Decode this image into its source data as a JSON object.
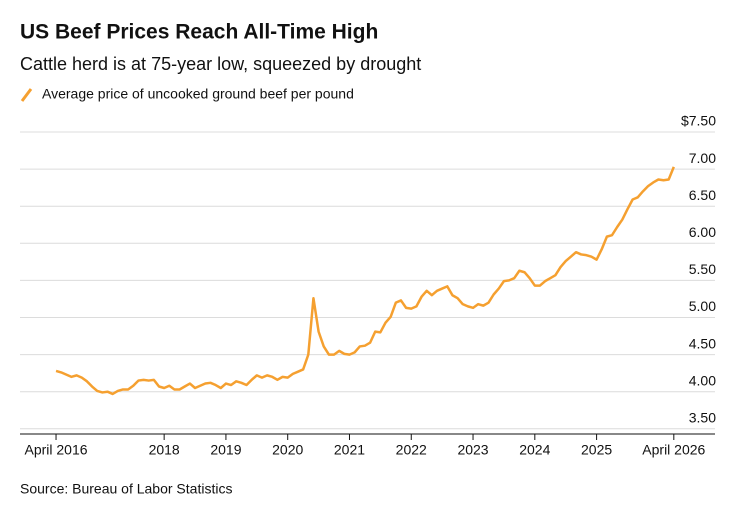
{
  "chart_data": {
    "type": "line",
    "title": "US Beef Prices Reach All-Time High",
    "subtitle": "Cattle herd is at 75-year low, squeezed by drought",
    "source": "Source: Bureau of Labor Statistics",
    "x": [
      "2016-04",
      "2016-05",
      "2016-06",
      "2016-07",
      "2016-08",
      "2016-09",
      "2016-10",
      "2016-11",
      "2016-12",
      "2017-01",
      "2017-02",
      "2017-03",
      "2017-04",
      "2017-05",
      "2017-06",
      "2017-07",
      "2017-08",
      "2017-09",
      "2017-10",
      "2017-11",
      "2017-12",
      "2018-01",
      "2018-02",
      "2018-03",
      "2018-04",
      "2018-05",
      "2018-06",
      "2018-07",
      "2018-08",
      "2018-09",
      "2018-10",
      "2018-11",
      "2018-12",
      "2019-01",
      "2019-02",
      "2019-03",
      "2019-04",
      "2019-05",
      "2019-06",
      "2019-07",
      "2019-08",
      "2019-09",
      "2019-10",
      "2019-11",
      "2019-12",
      "2020-01",
      "2020-02",
      "2020-03",
      "2020-04",
      "2020-05",
      "2020-06",
      "2020-07",
      "2020-08",
      "2020-09",
      "2020-10",
      "2020-11",
      "2020-12",
      "2021-01",
      "2021-02",
      "2021-03",
      "2021-04",
      "2021-05",
      "2021-06",
      "2021-07",
      "2021-08",
      "2021-09",
      "2021-10",
      "2021-11",
      "2021-12",
      "2022-01",
      "2022-02",
      "2022-03",
      "2022-04",
      "2022-05",
      "2022-06",
      "2022-07",
      "2022-08",
      "2022-09",
      "2022-10",
      "2022-11",
      "2022-12",
      "2023-01",
      "2023-02",
      "2023-03",
      "2023-04",
      "2023-05",
      "2023-06",
      "2023-07",
      "2023-08",
      "2023-09",
      "2023-10",
      "2023-11",
      "2023-12",
      "2024-01",
      "2024-02",
      "2024-03",
      "2024-04",
      "2024-05",
      "2024-06",
      "2024-07",
      "2024-08",
      "2024-09",
      "2024-10",
      "2024-11",
      "2024-12",
      "2025-01",
      "2025-02",
      "2025-03",
      "2025-04",
      "2025-05",
      "2025-06",
      "2025-07",
      "2025-08",
      "2025-09",
      "2025-10",
      "2025-11",
      "2025-12",
      "2026-01",
      "2026-02",
      "2026-03",
      "2026-04"
    ],
    "series": [
      {
        "name": "Average price of uncooked ground beef per pound",
        "color": "#f5a030",
        "values": [
          4.28,
          4.26,
          4.23,
          4.2,
          4.22,
          4.19,
          4.14,
          4.07,
          4.01,
          3.99,
          4.0,
          3.97,
          4.01,
          4.03,
          4.03,
          4.08,
          4.15,
          4.16,
          4.15,
          4.16,
          4.07,
          4.05,
          4.08,
          4.03,
          4.03,
          4.07,
          4.11,
          4.05,
          4.08,
          4.11,
          4.12,
          4.09,
          4.05,
          4.11,
          4.09,
          4.14,
          4.12,
          4.09,
          4.16,
          4.22,
          4.19,
          4.22,
          4.2,
          4.16,
          4.2,
          4.19,
          4.24,
          4.27,
          4.3,
          4.5,
          5.26,
          4.81,
          4.61,
          4.5,
          4.5,
          4.55,
          4.51,
          4.5,
          4.53,
          4.61,
          4.62,
          4.66,
          4.81,
          4.8,
          4.93,
          5.01,
          5.2,
          5.23,
          5.13,
          5.12,
          5.15,
          5.28,
          5.36,
          5.3,
          5.36,
          5.39,
          5.42,
          5.3,
          5.26,
          5.18,
          5.15,
          5.13,
          5.18,
          5.16,
          5.2,
          5.31,
          5.39,
          5.49,
          5.5,
          5.53,
          5.63,
          5.61,
          5.53,
          5.43,
          5.43,
          5.49,
          5.53,
          5.57,
          5.68,
          5.76,
          5.82,
          5.88,
          5.85,
          5.84,
          5.82,
          5.78,
          5.92,
          6.09,
          6.11,
          6.22,
          6.32,
          6.46,
          6.59,
          6.62,
          6.7,
          6.77,
          6.82,
          6.86,
          6.85,
          6.86,
          7.03
        ]
      }
    ],
    "xlim": [
      "2015-09",
      "2026-12"
    ],
    "xticks": [
      {
        "value": "2016-04",
        "label": "April 2016"
      },
      {
        "value": "2018-01",
        "label": "2018"
      },
      {
        "value": "2019-01",
        "label": "2019"
      },
      {
        "value": "2020-01",
        "label": "2020"
      },
      {
        "value": "2021-01",
        "label": "2021"
      },
      {
        "value": "2022-01",
        "label": "2022"
      },
      {
        "value": "2023-01",
        "label": "2023"
      },
      {
        "value": "2024-01",
        "label": "2024"
      },
      {
        "value": "2025-01",
        "label": "2025"
      },
      {
        "value": "2026-04",
        "label": "April 2026"
      }
    ],
    "ylim": [
      3.43,
      7.5
    ],
    "yticks": [
      {
        "value": 3.5,
        "label": "3.50"
      },
      {
        "value": 4,
        "label": "4.00"
      },
      {
        "value": 4.5,
        "label": "4.50"
      },
      {
        "value": 5,
        "label": "5.00"
      },
      {
        "value": 5.5,
        "label": "5.50"
      },
      {
        "value": 6,
        "label": "6.00"
      },
      {
        "value": 6.5,
        "label": "6.50"
      },
      {
        "value": 7,
        "label": "7.00"
      },
      {
        "value": 7.5,
        "label": "$7.50"
      }
    ],
    "grid": true
  }
}
